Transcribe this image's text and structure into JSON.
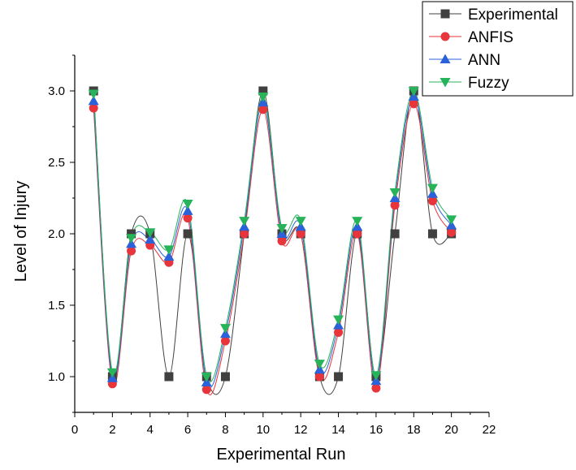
{
  "chart_data": {
    "type": "line",
    "title": "",
    "xlabel": "Experimental Run",
    "ylabel": "Level of Injury",
    "xlim": [
      0,
      22
    ],
    "ylim": [
      0.75,
      3.25
    ],
    "xticks": [
      0,
      2,
      4,
      6,
      8,
      10,
      12,
      14,
      16,
      18,
      20,
      22
    ],
    "yticks": [
      1.0,
      1.5,
      2.0,
      2.5,
      3.0
    ],
    "ytick_labels": [
      "1.0",
      "1.5",
      "2.0",
      "2.5",
      "3.0"
    ],
    "x": [
      1,
      2,
      3,
      4,
      5,
      6,
      7,
      8,
      9,
      10,
      11,
      12,
      13,
      14,
      15,
      16,
      17,
      18,
      19,
      20
    ],
    "legend_position": "top-right",
    "series": [
      {
        "name": "Experimental",
        "marker": "square",
        "color": "#404040",
        "values": [
          3,
          1,
          2,
          2,
          1,
          2,
          1,
          1,
          2,
          3,
          2,
          2,
          1,
          1,
          2,
          1,
          2,
          3,
          2,
          2
        ]
      },
      {
        "name": "ANFIS",
        "marker": "circle",
        "color": "#e8353b",
        "values": [
          2.88,
          0.95,
          1.88,
          1.92,
          1.8,
          2.11,
          0.91,
          1.25,
          2.0,
          2.87,
          1.95,
          2.0,
          1.0,
          1.31,
          2.0,
          0.92,
          2.2,
          2.91,
          2.23,
          2.01
        ]
      },
      {
        "name": "ANN",
        "marker": "triangle-up",
        "color": "#2b62d9",
        "values": [
          2.93,
          0.99,
          1.93,
          1.96,
          1.84,
          2.16,
          0.96,
          1.3,
          2.05,
          2.92,
          2.0,
          2.05,
          1.05,
          1.36,
          2.05,
          0.97,
          2.25,
          2.96,
          2.28,
          2.06
        ]
      },
      {
        "name": "Fuzzy",
        "marker": "triangle-down",
        "color": "#27b35a",
        "values": [
          2.98,
          1.03,
          1.97,
          2.01,
          1.89,
          2.21,
          1.0,
          1.34,
          2.09,
          2.96,
          2.04,
          2.09,
          1.09,
          1.4,
          2.09,
          1.01,
          2.29,
          3.0,
          2.32,
          2.1
        ]
      }
    ]
  }
}
